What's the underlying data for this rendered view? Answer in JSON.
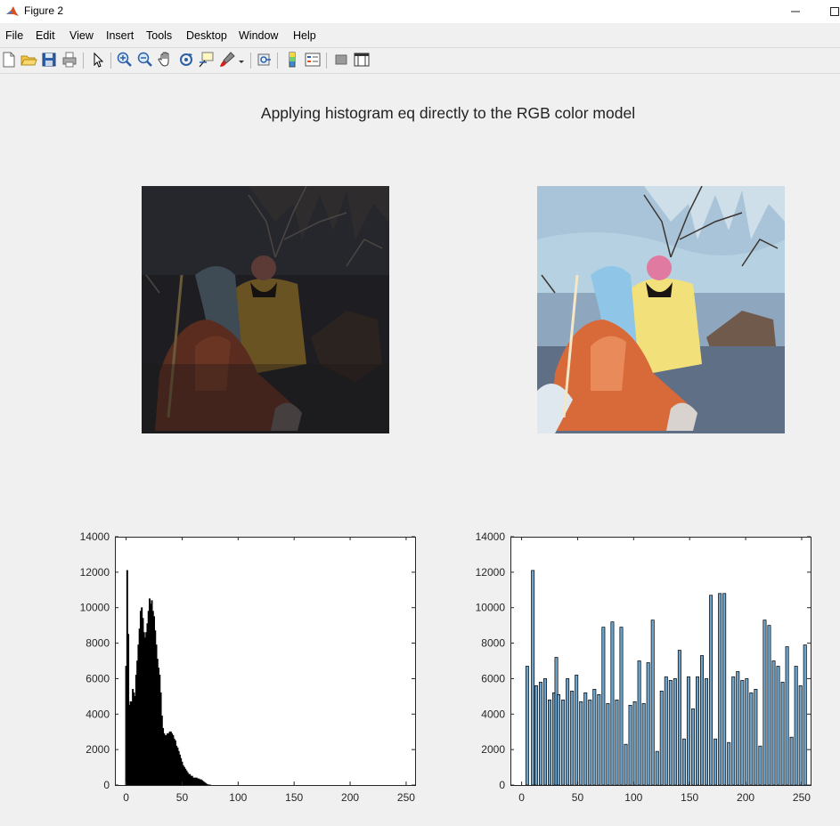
{
  "window": {
    "title": "Figure 2",
    "minimize_icon": "minimize-icon",
    "maximize_icon": "maximize-icon"
  },
  "menu": [
    "File",
    "Edit",
    "View",
    "Insert",
    "Tools",
    "Desktop",
    "Window",
    "Help"
  ],
  "toolbar": [
    "new-figure-icon",
    "open-file-icon",
    "save-icon",
    "print-icon",
    "edit-plot-arrow-icon",
    "zoom-in-icon",
    "zoom-out-icon",
    "pan-hand-icon",
    "rotate-3d-icon",
    "data-cursor-icon",
    "brush-icon",
    "link-plot-icon",
    "insert-colorbar-icon",
    "insert-legend-icon",
    "hide-plot-tools-icon",
    "show-plot-tools-icon"
  ],
  "figure": {
    "title": "Applying histogram eq directly to the RGB color model"
  },
  "images": [
    {
      "name": "original-image",
      "description_icon": "dark-photo"
    },
    {
      "name": "equalized-image",
      "description_icon": "bright-photo"
    }
  ],
  "colors": {
    "left_bars": "#000000",
    "right_bars": "#6ea4cc",
    "bar_edge": "#000000"
  },
  "chart_data": [
    {
      "type": "bar",
      "xlim": [
        -10,
        258
      ],
      "ylim": [
        0,
        14000
      ],
      "xticks": [
        "0",
        "50",
        "100",
        "150",
        "200",
        "250"
      ],
      "yticks": [
        "0",
        "2000",
        "4000",
        "6000",
        "8000",
        "10000",
        "12000",
        "14000"
      ],
      "x": [
        0,
        1,
        2,
        3,
        4,
        5,
        6,
        7,
        8,
        9,
        10,
        11,
        12,
        13,
        14,
        15,
        16,
        17,
        18,
        19,
        20,
        21,
        22,
        23,
        24,
        25,
        26,
        27,
        28,
        29,
        30,
        31,
        32,
        33,
        34,
        35,
        36,
        37,
        38,
        39,
        40,
        41,
        42,
        43,
        44,
        45,
        46,
        47,
        48,
        49,
        50,
        51,
        52,
        53,
        54,
        55,
        56,
        57,
        58,
        59,
        60,
        61,
        62,
        63,
        64,
        65,
        66,
        67,
        68,
        69,
        70,
        71,
        72,
        73,
        74,
        75,
        76,
        77,
        78,
        79,
        80,
        81,
        82,
        83,
        84,
        85,
        86,
        87,
        88,
        89,
        90,
        91,
        92,
        93,
        94,
        95,
        96,
        97,
        98,
        99,
        100,
        101,
        102,
        103,
        104,
        105,
        106,
        107,
        108,
        109,
        110,
        111,
        112,
        113,
        114,
        115
      ],
      "values": [
        6700,
        12100,
        8500,
        4500,
        4700,
        4700,
        5400,
        5200,
        5000,
        6200,
        7000,
        7900,
        8800,
        9800,
        10000,
        9400,
        8600,
        8300,
        8600,
        9100,
        9800,
        10500,
        10200,
        10400,
        9800,
        9500,
        8700,
        7900,
        7100,
        6600,
        6200,
        5200,
        3900,
        3200,
        2900,
        2800,
        2800,
        2900,
        2900,
        3000,
        3000,
        2900,
        2800,
        2600,
        2500,
        2200,
        2100,
        1900,
        1700,
        1500,
        1300,
        1100,
        1000,
        900,
        800,
        700,
        600,
        600,
        500,
        500,
        400,
        400,
        400,
        400,
        350,
        350,
        300,
        300,
        250,
        200,
        150,
        100,
        50,
        20,
        10,
        5,
        0,
        0,
        0,
        0,
        0,
        0,
        0,
        0,
        0,
        0,
        0,
        0,
        0,
        0,
        0,
        0,
        0,
        0,
        0,
        0,
        0,
        0,
        0,
        0,
        0,
        0,
        0,
        0,
        0,
        0,
        0,
        0,
        0,
        0,
        0,
        0,
        0,
        0,
        0,
        0
      ],
      "x_offset": 0
    },
    {
      "type": "bar",
      "xlim": [
        -10,
        258
      ],
      "ylim": [
        0,
        14000
      ],
      "xticks": [
        "0",
        "50",
        "100",
        "150",
        "200",
        "250"
      ],
      "yticks": [
        "0",
        "2000",
        "4000",
        "6000",
        "8000",
        "10000",
        "12000",
        "14000"
      ],
      "x": [
        5,
        10,
        13,
        17,
        21,
        25,
        29,
        31,
        33,
        37,
        41,
        45,
        49,
        53,
        57,
        61,
        65,
        69,
        73,
        77,
        81,
        85,
        89,
        93,
        97,
        101,
        105,
        109,
        113,
        117,
        121,
        125,
        129,
        133,
        137,
        141,
        145,
        149,
        153,
        157,
        161,
        165,
        169,
        173,
        177,
        181,
        185,
        189,
        193,
        197,
        201,
        205,
        209,
        213,
        217,
        221,
        225,
        229,
        233,
        237,
        241,
        245,
        249,
        253
      ],
      "values": [
        6700,
        12100,
        5600,
        5800,
        6000,
        4800,
        5200,
        7200,
        5100,
        4800,
        6000,
        5300,
        6200,
        4700,
        5200,
        4800,
        5400,
        5100,
        8900,
        4600,
        9200,
        4800,
        8900,
        2300,
        4500,
        4700,
        7000,
        4600,
        6900,
        9300,
        1900,
        5300,
        6100,
        5900,
        6000,
        7600,
        2600,
        6100,
        4300,
        6100,
        7300,
        6000,
        10700,
        2600,
        10800,
        10800,
        2400,
        6100,
        6400,
        5900,
        6000,
        5200,
        5400,
        2200,
        9300,
        9000,
        7000,
        6700,
        5800,
        7800,
        2700,
        6700,
        5600,
        7900
      ],
      "x_offset": 0
    }
  ]
}
